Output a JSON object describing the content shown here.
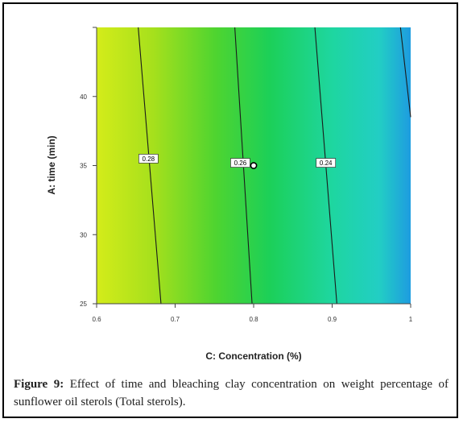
{
  "chart_data": {
    "type": "contour",
    "title": "",
    "xlabel": "C: Concentration (%)",
    "ylabel": "A: time (min)",
    "xlim": [
      0.6,
      1.0
    ],
    "ylim": [
      25,
      45
    ],
    "x_ticks": [
      {
        "value": 0.6,
        "label": "0.6"
      },
      {
        "value": 0.7,
        "label": "0.7"
      },
      {
        "value": 0.8,
        "label": "0.8"
      },
      {
        "value": 0.9,
        "label": "0.9"
      },
      {
        "value": 1.0,
        "label": "1"
      }
    ],
    "y_ticks": [
      {
        "value": 25,
        "label": "25"
      },
      {
        "value": 30,
        "label": "30"
      },
      {
        "value": 35,
        "label": "35"
      },
      {
        "value": 40,
        "label": "40"
      },
      {
        "value": 45,
        "label": ""
      }
    ],
    "contours": [
      {
        "label": "0.28",
        "points": [
          [
            0.653,
            45
          ],
          [
            0.682,
            25
          ]
        ],
        "label_at": [
          0.666,
          35.5
        ]
      },
      {
        "label": "0.26",
        "points": [
          [
            0.776,
            45
          ],
          [
            0.798,
            25
          ]
        ],
        "label_at": [
          0.783,
          35.2
        ]
      },
      {
        "label": "0.24",
        "points": [
          [
            0.878,
            45
          ],
          [
            0.906,
            25
          ]
        ],
        "label_at": [
          0.892,
          35.2
        ]
      },
      {
        "label": "",
        "points": [
          [
            0.987,
            45
          ],
          [
            1.0,
            38.5
          ]
        ],
        "label_at": null
      }
    ],
    "design_points": [
      {
        "x": 0.8,
        "y": 35
      }
    ],
    "gradient_colors": [
      "#d4ec1a",
      "#a6e01c",
      "#4ed430",
      "#1cd058",
      "#1ed6a0",
      "#22cec4",
      "#1e9ce0"
    ],
    "grid": false,
    "legend": "none"
  },
  "caption": {
    "label": "Figure 9:",
    "text": " Effect of time and bleaching clay concentration on weight percentage of sunflower oil sterols (Total sterols)."
  }
}
